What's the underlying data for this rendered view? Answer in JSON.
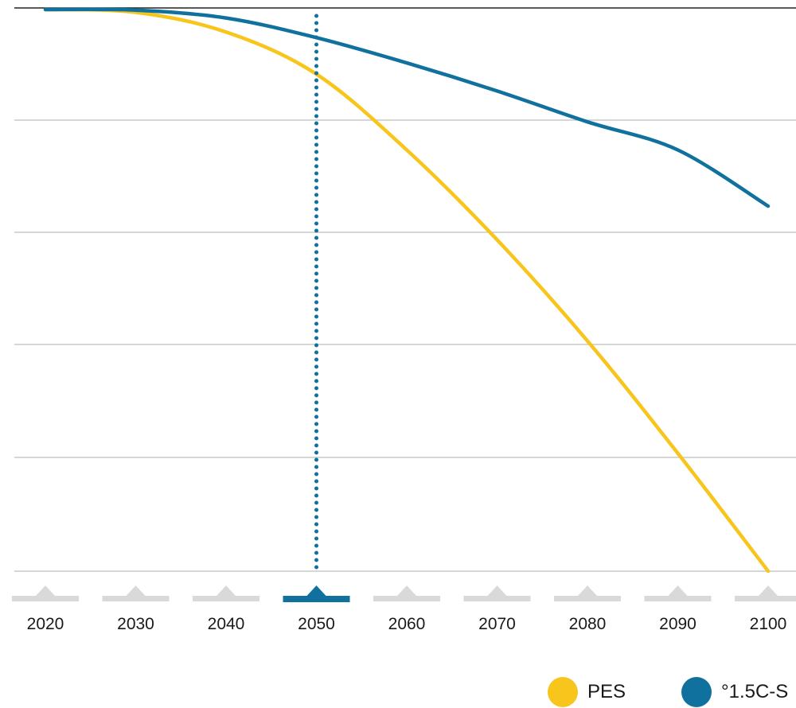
{
  "chart_data": {
    "type": "line",
    "title": "",
    "xlabel": "",
    "ylabel": "",
    "x": [
      2020,
      2030,
      2040,
      2050,
      2060,
      2070,
      2080,
      2090,
      2100
    ],
    "ylim": [
      0,
      1
    ],
    "grid": true,
    "legend_position": "bottom-right",
    "selected_year": 2050,
    "series": [
      {
        "name": "PES",
        "color": "#f7c51c",
        "values": [
          1.0,
          0.995,
          0.96,
          0.885,
          0.75,
          0.59,
          0.41,
          0.21,
          0.0
        ]
      },
      {
        "name": "°1.5C-S",
        "color": "#10719e",
        "values": [
          1.0,
          0.999,
          0.985,
          0.95,
          0.905,
          0.855,
          0.8,
          0.75,
          0.65
        ]
      }
    ]
  },
  "timeline": {
    "years": [
      "2020",
      "2030",
      "2040",
      "2050",
      "2060",
      "2070",
      "2080",
      "2090",
      "2100"
    ],
    "active_year": "2050",
    "active_color": "#10719e",
    "inactive_color": "#d9d9d9"
  },
  "legend": [
    {
      "label": "PES",
      "color": "#f7c51c"
    },
    {
      "label": "°1.5C-S",
      "color": "#10719e"
    }
  ]
}
